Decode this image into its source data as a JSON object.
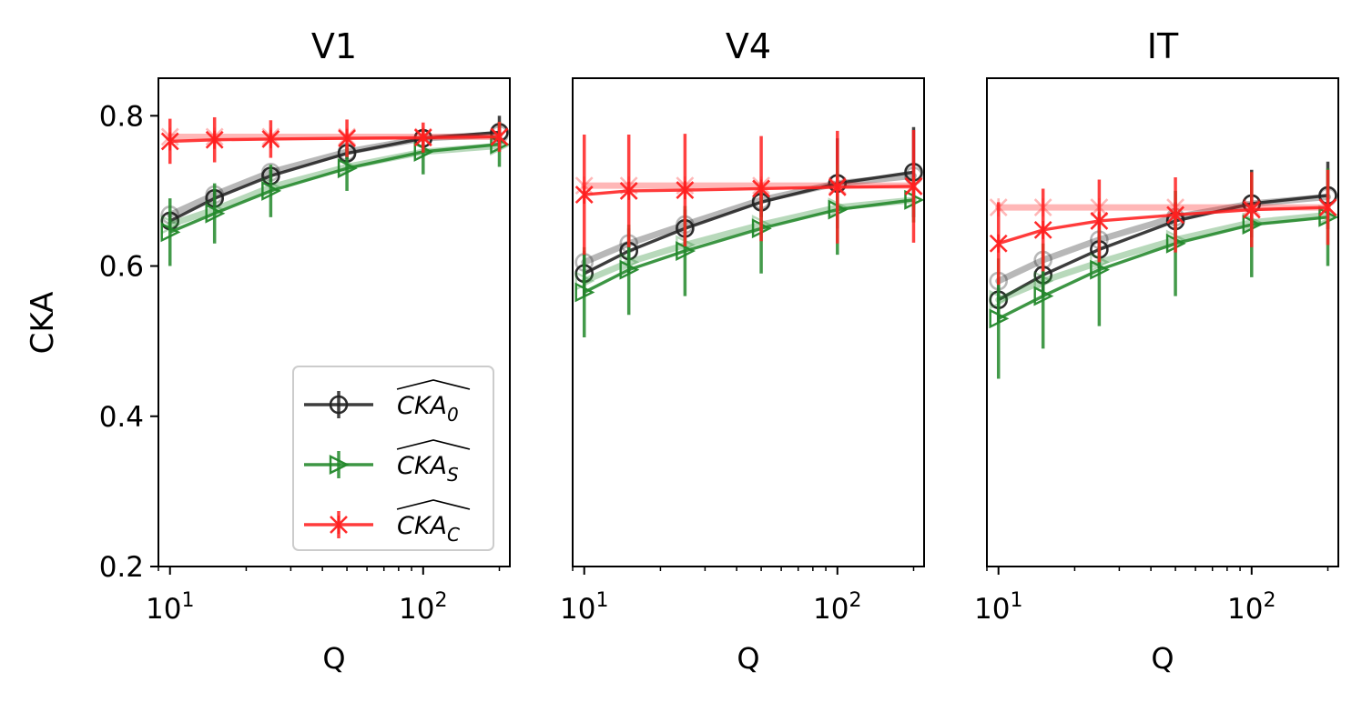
{
  "figure": {
    "ylabel": "CKA"
  },
  "legend": {
    "entries": [
      {
        "base": "CKA",
        "sub": "0",
        "color": "#222222",
        "marker": "circle"
      },
      {
        "base": "CKA",
        "sub": "S",
        "color": "#22882a",
        "marker": "triangle-right"
      },
      {
        "base": "CKA",
        "sub": "C",
        "color": "#ff2020",
        "marker": "x-star"
      }
    ]
  },
  "chart_data": [
    {
      "type": "line",
      "title": "V1",
      "xlabel": "Q",
      "ylabel": "CKA",
      "xscale": "log",
      "xlim": [
        9,
        220
      ],
      "ylim": [
        0.2,
        0.85
      ],
      "xticks": [
        {
          "base": "10",
          "exp": "1",
          "value": 10
        },
        {
          "base": "10",
          "exp": "2",
          "value": 100
        }
      ],
      "yticks": [
        "0.2",
        "0.4",
        "0.6",
        "0.8"
      ],
      "x": [
        10,
        15,
        25,
        50,
        100,
        200
      ],
      "series": [
        {
          "name": "CKA_0",
          "color": "#222222",
          "marker": "circle",
          "values": [
            0.66,
            0.69,
            0.72,
            0.75,
            0.77,
            0.778
          ],
          "err": [
            0.01,
            0.01,
            0.008,
            0.008,
            0.01,
            0.022
          ],
          "faint": [
            0.668,
            0.695,
            0.725,
            0.752,
            0.77,
            0.775
          ]
        },
        {
          "name": "CKA_S",
          "color": "#22882a",
          "marker": "triangle-right",
          "values": [
            0.645,
            0.67,
            0.7,
            0.73,
            0.752,
            0.762
          ],
          "err": [
            0.045,
            0.04,
            0.035,
            0.03,
            0.03,
            0.03
          ],
          "faint": [
            0.655,
            0.675,
            0.705,
            0.732,
            0.752,
            0.76
          ]
        },
        {
          "name": "CKA_C",
          "color": "#ff2020",
          "marker": "x-star",
          "values": [
            0.766,
            0.768,
            0.769,
            0.77,
            0.771,
            0.772
          ],
          "err": [
            0.03,
            0.03,
            0.025,
            0.025,
            0.02,
            0.02
          ],
          "faint": [
            0.772,
            0.772,
            0.772,
            0.772,
            0.772,
            0.772
          ]
        }
      ]
    },
    {
      "type": "line",
      "title": "V4",
      "xlabel": "Q",
      "ylabel": "",
      "xscale": "log",
      "xlim": [
        9,
        220
      ],
      "ylim": [
        0.2,
        0.85
      ],
      "xticks": [
        {
          "base": "10",
          "exp": "1",
          "value": 10
        },
        {
          "base": "10",
          "exp": "2",
          "value": 100
        }
      ],
      "yticks": [],
      "x": [
        10,
        15,
        25,
        50,
        100,
        200
      ],
      "series": [
        {
          "name": "CKA_0",
          "color": "#222222",
          "marker": "circle",
          "values": [
            0.59,
            0.62,
            0.65,
            0.685,
            0.71,
            0.725
          ],
          "err": [
            0.03,
            0.03,
            0.025,
            0.02,
            0.06,
            0.06
          ],
          "faint": [
            0.605,
            0.63,
            0.655,
            0.688,
            0.71,
            0.72
          ]
        },
        {
          "name": "CKA_S",
          "color": "#22882a",
          "marker": "triangle-right",
          "values": [
            0.565,
            0.595,
            0.62,
            0.65,
            0.675,
            0.688
          ],
          "err": [
            0.06,
            0.06,
            0.06,
            0.06,
            0.06,
            0.03
          ],
          "faint": [
            0.58,
            0.605,
            0.628,
            0.655,
            0.678,
            0.688
          ]
        },
        {
          "name": "CKA_C",
          "color": "#ff2020",
          "marker": "x-star",
          "values": [
            0.695,
            0.7,
            0.701,
            0.703,
            0.705,
            0.706
          ],
          "err": [
            0.08,
            0.075,
            0.075,
            0.07,
            0.075,
            0.075
          ],
          "faint": [
            0.707,
            0.707,
            0.707,
            0.707,
            0.707,
            0.707
          ]
        }
      ]
    },
    {
      "type": "line",
      "title": "IT",
      "xlabel": "Q",
      "ylabel": "",
      "xscale": "log",
      "xlim": [
        9,
        220
      ],
      "ylim": [
        0.2,
        0.85
      ],
      "xticks": [
        {
          "base": "10",
          "exp": "1",
          "value": 10
        },
        {
          "base": "10",
          "exp": "2",
          "value": 100
        }
      ],
      "yticks": [],
      "x": [
        10,
        15,
        25,
        50,
        100,
        200
      ],
      "series": [
        {
          "name": "CKA_0",
          "color": "#222222",
          "marker": "circle",
          "values": [
            0.555,
            0.588,
            0.622,
            0.66,
            0.683,
            0.694
          ],
          "err": [
            0.03,
            0.03,
            0.025,
            0.025,
            0.045,
            0.045
          ],
          "faint": [
            0.58,
            0.608,
            0.635,
            0.665,
            0.683,
            0.692
          ]
        },
        {
          "name": "CKA_S",
          "color": "#22882a",
          "marker": "triangle-right",
          "values": [
            0.53,
            0.56,
            0.595,
            0.63,
            0.655,
            0.665
          ],
          "err": [
            0.08,
            0.07,
            0.075,
            0.07,
            0.07,
            0.065
          ],
          "faint": [
            0.555,
            0.58,
            0.605,
            0.635,
            0.658,
            0.668
          ]
        },
        {
          "name": "CKA_C",
          "color": "#ff2020",
          "marker": "x-star",
          "values": [
            0.63,
            0.648,
            0.66,
            0.668,
            0.675,
            0.678
          ],
          "err": [
            0.055,
            0.055,
            0.055,
            0.05,
            0.05,
            0.05
          ],
          "faint": [
            0.678,
            0.678,
            0.678,
            0.678,
            0.678,
            0.678
          ]
        }
      ]
    }
  ]
}
